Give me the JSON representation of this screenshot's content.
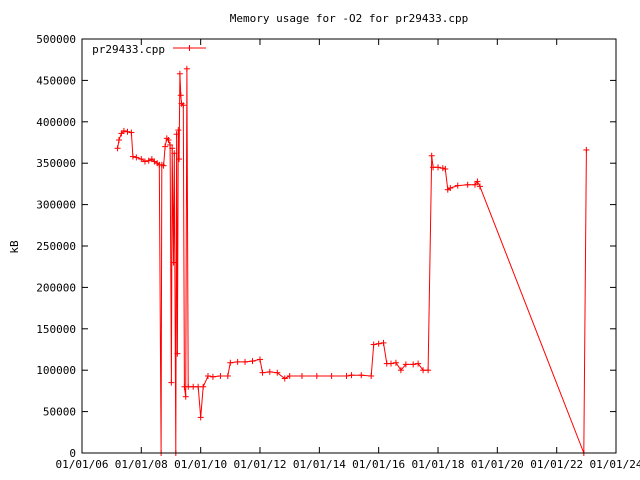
{
  "chart_data": {
    "type": "line",
    "title": "Memory usage for -O2 for pr29433.cpp",
    "xlabel": "",
    "ylabel": "kB",
    "xlim": [
      "01/01/06",
      "01/01/24"
    ],
    "ylim": [
      0,
      500000
    ],
    "x_ticks": [
      "01/01/06",
      "01/01/08",
      "01/01/10",
      "01/01/12",
      "01/01/14",
      "01/01/16",
      "01/01/18",
      "01/01/20",
      "01/01/22",
      "01/01/24"
    ],
    "y_ticks": [
      "0",
      "50000",
      "100000",
      "150000",
      "200000",
      "250000",
      "300000",
      "350000",
      "400000",
      "450000",
      "500000"
    ],
    "grid": false,
    "legend_position": "top-left",
    "series": [
      {
        "name": "pr29433.cpp",
        "color": "#ff0000",
        "marker": "plus",
        "points": [
          [
            "2007-03-15",
            368000
          ],
          [
            "2007-04-01",
            378000
          ],
          [
            "2007-05-01",
            386000
          ],
          [
            "2007-06-01",
            389000
          ],
          [
            "2007-07-15",
            388000
          ],
          [
            "2007-09-01",
            387000
          ],
          [
            "2007-09-20",
            358000
          ],
          [
            "2007-11-01",
            357000
          ],
          [
            "2008-01-01",
            355000
          ],
          [
            "2008-02-15",
            352000
          ],
          [
            "2008-04-01",
            353000
          ],
          [
            "2008-05-10",
            355000
          ],
          [
            "2008-06-10",
            352000
          ],
          [
            "2008-07-15",
            350000
          ],
          [
            "2008-08-10",
            348000
          ],
          [
            "2008-09-01",
            0
          ],
          [
            "2008-09-10",
            348000
          ],
          [
            "2008-10-01",
            347000
          ],
          [
            "2008-10-20",
            370000
          ],
          [
            "2008-11-10",
            380000
          ],
          [
            "2008-12-01",
            378000
          ],
          [
            "2008-12-20",
            372000
          ],
          [
            "2009-01-05",
            85000
          ],
          [
            "2009-01-15",
            368000
          ],
          [
            "2009-02-01",
            230000
          ],
          [
            "2009-02-10",
            362000
          ],
          [
            "2009-03-01",
            0
          ],
          [
            "2009-03-10",
            385000
          ],
          [
            "2009-03-20",
            120000
          ],
          [
            "2009-04-01",
            390000
          ],
          [
            "2009-04-10",
            355000
          ],
          [
            "2009-04-20",
            458000
          ],
          [
            "2009-05-01",
            432000
          ],
          [
            "2009-05-10",
            422000
          ],
          [
            "2009-06-01",
            420000
          ],
          [
            "2009-06-15",
            80000
          ],
          [
            "2009-07-01",
            68000
          ],
          [
            "2009-07-15",
            464000
          ],
          [
            "2009-08-01",
            80000
          ],
          [
            "2009-10-01",
            80000
          ],
          [
            "2009-12-01",
            80000
          ],
          [
            "2010-01-01",
            43000
          ],
          [
            "2010-02-01",
            80000
          ],
          [
            "2010-04-01",
            93000
          ],
          [
            "2010-06-01",
            92000
          ],
          [
            "2010-09-01",
            93000
          ],
          [
            "2010-12-01",
            93000
          ],
          [
            "2011-01-01",
            109000
          ],
          [
            "2011-04-01",
            110000
          ],
          [
            "2011-07-01",
            110000
          ],
          [
            "2011-10-01",
            111000
          ],
          [
            "2012-01-01",
            113000
          ],
          [
            "2012-02-01",
            97000
          ],
          [
            "2012-05-01",
            98000
          ],
          [
            "2012-08-01",
            97000
          ],
          [
            "2012-11-01",
            90000
          ],
          [
            "2013-01-01",
            93000
          ],
          [
            "2013-06-01",
            93000
          ],
          [
            "2013-12-01",
            93000
          ],
          [
            "2014-06-01",
            93000
          ],
          [
            "2014-12-01",
            93000
          ],
          [
            "2015-02-01",
            94000
          ],
          [
            "2015-06-01",
            94000
          ],
          [
            "2015-10-01",
            93000
          ],
          [
            "2015-11-01",
            131000
          ],
          [
            "2016-01-01",
            132000
          ],
          [
            "2016-03-01",
            133000
          ],
          [
            "2016-04-10",
            108000
          ],
          [
            "2016-06-01",
            108000
          ],
          [
            "2016-08-01",
            109000
          ],
          [
            "2016-10-01",
            100000
          ],
          [
            "2016-12-01",
            107000
          ],
          [
            "2017-03-01",
            107000
          ],
          [
            "2017-05-01",
            108000
          ],
          [
            "2017-07-01",
            100000
          ],
          [
            "2017-09-01",
            100000
          ],
          [
            "2017-10-15",
            359000
          ],
          [
            "2017-11-01",
            345000
          ],
          [
            "2018-01-01",
            345000
          ],
          [
            "2018-03-01",
            344000
          ],
          [
            "2018-04-01",
            343000
          ],
          [
            "2018-05-01",
            318000
          ],
          [
            "2018-06-01",
            320000
          ],
          [
            "2018-09-01",
            323000
          ],
          [
            "2019-01-01",
            324000
          ],
          [
            "2019-04-01",
            324000
          ],
          [
            "2019-05-01",
            328000
          ],
          [
            "2019-06-01",
            322000
          ],
          [
            "2022-12-01",
            0
          ],
          [
            "2023-01-01",
            366000
          ]
        ]
      }
    ]
  }
}
